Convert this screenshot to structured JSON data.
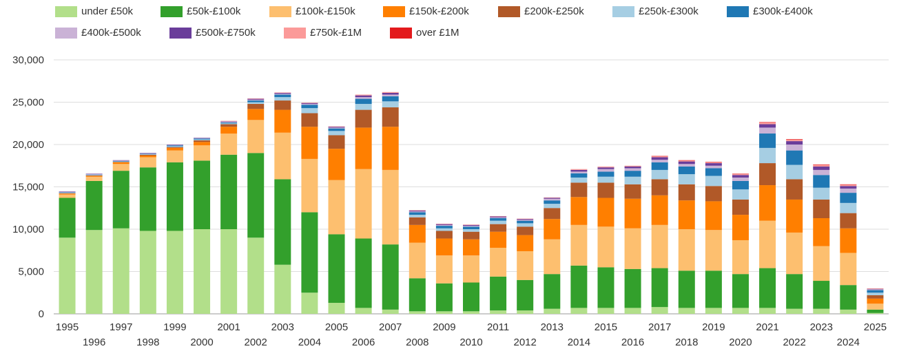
{
  "chart_data": {
    "type": "bar",
    "stacked": true,
    "title": "",
    "xlabel": "",
    "ylabel": "",
    "ylim": [
      0,
      30000
    ],
    "yticks": [
      0,
      5000,
      10000,
      15000,
      20000,
      25000,
      30000
    ],
    "ytick_labels": [
      "0",
      "5,000",
      "10,000",
      "15,000",
      "20,000",
      "25,000",
      "30,000"
    ],
    "grid": true,
    "legend_position": "top-left",
    "categories": [
      "1995",
      "1996",
      "1997",
      "1998",
      "1999",
      "2000",
      "2001",
      "2002",
      "2003",
      "2004",
      "2005",
      "2006",
      "2007",
      "2008",
      "2009",
      "2010",
      "2011",
      "2012",
      "2013",
      "2014",
      "2015",
      "2016",
      "2017",
      "2018",
      "2019",
      "2020",
      "2021",
      "2022",
      "2023",
      "2024",
      "2025"
    ],
    "series": [
      {
        "name": "under £50k",
        "color": "#b2df8a",
        "values": [
          9000,
          9900,
          10100,
          9800,
          9800,
          10000,
          10000,
          9000,
          5800,
          2500,
          1300,
          700,
          500,
          300,
          300,
          300,
          400,
          400,
          600,
          700,
          700,
          700,
          800,
          700,
          700,
          700,
          700,
          600,
          600,
          500,
          100
        ]
      },
      {
        "name": "£50k-£100k",
        "color": "#33a02c",
        "values": [
          4700,
          5800,
          6800,
          7500,
          8100,
          8100,
          8800,
          10000,
          10100,
          9500,
          8100,
          8200,
          7700,
          3900,
          3300,
          3400,
          4000,
          3600,
          4100,
          5000,
          4800,
          4600,
          4600,
          4400,
          4400,
          4000,
          4700,
          4100,
          3300,
          2900,
          400
        ]
      },
      {
        "name": "£100k-£150k",
        "color": "#fdbf6f",
        "values": [
          400,
          500,
          800,
          1200,
          1400,
          1800,
          2500,
          3900,
          5500,
          6300,
          6400,
          8200,
          8800,
          4200,
          3300,
          3200,
          3400,
          3400,
          4100,
          4800,
          4800,
          4800,
          5100,
          4900,
          4800,
          4000,
          5600,
          4900,
          4100,
          3800,
          700
        ]
      },
      {
        "name": "£150k-£200k",
        "color": "#ff7f00",
        "values": [
          100,
          100,
          200,
          200,
          300,
          400,
          800,
          1300,
          2700,
          3800,
          3700,
          4900,
          5100,
          2100,
          2000,
          1900,
          1900,
          1900,
          2400,
          3300,
          3400,
          3500,
          3500,
          3400,
          3400,
          3000,
          4200,
          3900,
          3300,
          2900,
          600
        ]
      },
      {
        "name": "£200k-£250k",
        "color": "#b15928",
        "values": [
          50,
          50,
          50,
          100,
          100,
          200,
          300,
          600,
          1100,
          1600,
          1600,
          2100,
          2300,
          900,
          900,
          900,
          900,
          1000,
          1300,
          1700,
          1800,
          1700,
          1900,
          1900,
          1800,
          1800,
          2600,
          2400,
          2200,
          1800,
          400
        ]
      },
      {
        "name": "£250k-£300k",
        "color": "#a6cee3",
        "values": [
          50,
          50,
          50,
          50,
          100,
          100,
          100,
          200,
          400,
          600,
          500,
          700,
          700,
          300,
          300,
          300,
          400,
          400,
          500,
          600,
          700,
          900,
          1100,
          1200,
          1200,
          1200,
          1800,
          1700,
          1400,
          1200,
          300
        ]
      },
      {
        "name": "£300k-£400k",
        "color": "#1f78b4",
        "values": [
          50,
          50,
          50,
          50,
          100,
          100,
          100,
          200,
          300,
          400,
          300,
          600,
          600,
          300,
          300,
          300,
          300,
          300,
          400,
          500,
          600,
          700,
          900,
          900,
          900,
          1000,
          1700,
          1700,
          1500,
          1200,
          300
        ]
      },
      {
        "name": "£400k-£500k",
        "color": "#cab2d6",
        "values": [
          50,
          50,
          50,
          50,
          50,
          50,
          100,
          100,
          100,
          100,
          100,
          200,
          200,
          100,
          100,
          100,
          100,
          100,
          200,
          200,
          300,
          300,
          300,
          300,
          300,
          400,
          700,
          700,
          600,
          500,
          100
        ]
      },
      {
        "name": "£500k-£750k",
        "color": "#6a3d9a",
        "values": [
          50,
          50,
          50,
          50,
          50,
          50,
          50,
          100,
          100,
          100,
          100,
          200,
          200,
          100,
          100,
          100,
          100,
          100,
          100,
          200,
          200,
          200,
          300,
          300,
          300,
          300,
          400,
          400,
          400,
          300,
          50
        ]
      },
      {
        "name": "£750k-£1M",
        "color": "#fb9a99",
        "values": [
          0,
          0,
          0,
          0,
          0,
          0,
          50,
          50,
          50,
          50,
          50,
          100,
          100,
          50,
          50,
          50,
          50,
          50,
          50,
          100,
          100,
          100,
          100,
          100,
          100,
          100,
          200,
          200,
          200,
          150,
          30
        ]
      },
      {
        "name": "over £1M",
        "color": "#e31a1c",
        "values": [
          0,
          0,
          0,
          0,
          0,
          0,
          0,
          0,
          0,
          0,
          0,
          0,
          0,
          0,
          0,
          0,
          0,
          0,
          0,
          0,
          0,
          0,
          50,
          50,
          50,
          50,
          50,
          50,
          50,
          50,
          20
        ]
      }
    ]
  }
}
